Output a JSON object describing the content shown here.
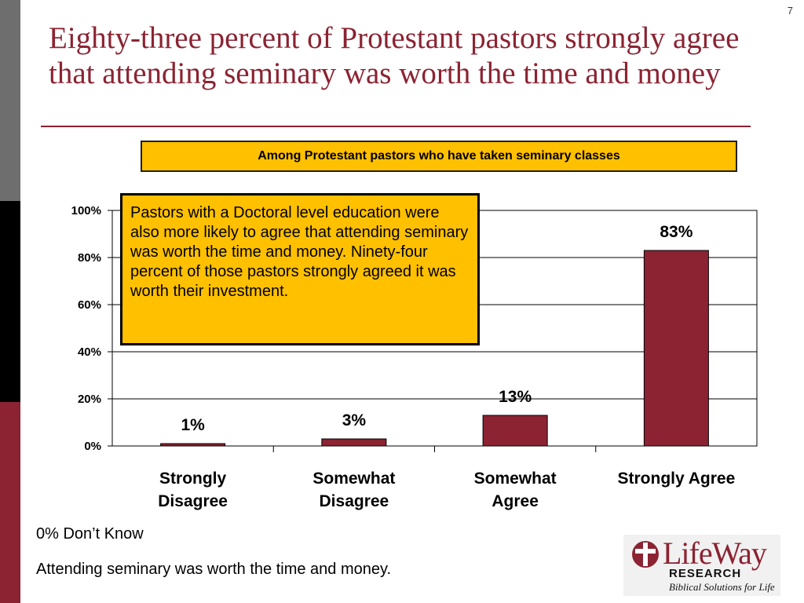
{
  "slide_number": "7",
  "title": "Eighty-three percent of Protestant pastors strongly agree that attending seminary was worth the time and money",
  "subtitle": "Among Protestant pastors who have taken seminary classes",
  "callout": "Pastors with a Doctoral level education were also more likely to agree that attending seminary was worth the time and money. Ninety-four percent of those pastors strongly agreed it was worth their investment.",
  "footnotes": {
    "dont_know": "0% Don’t Know",
    "statement": "Attending seminary was worth the time and money."
  },
  "logo": {
    "name": "LifeWay",
    "research": "RESEARCH",
    "tagline": "Biblical Solutions for Life"
  },
  "colors": {
    "bar": "#8b2332",
    "accent_box": "#ffc000",
    "title": "#8b2332"
  },
  "chart_data": {
    "type": "bar",
    "categories": [
      [
        "Strongly",
        "Disagree"
      ],
      [
        "Somewhat",
        "Disagree"
      ],
      [
        "Somewhat",
        "Agree"
      ],
      [
        "Strongly Agree"
      ]
    ],
    "values": [
      1,
      3,
      13,
      83
    ],
    "data_labels": [
      "1%",
      "3%",
      "13%",
      "83%"
    ],
    "ylim": [
      0,
      100
    ],
    "yticks": [
      0,
      20,
      40,
      60,
      80,
      100
    ],
    "ytick_labels": [
      "0%",
      "20%",
      "40%",
      "60%",
      "80%",
      "100%"
    ],
    "grid": true,
    "legend": "none"
  }
}
